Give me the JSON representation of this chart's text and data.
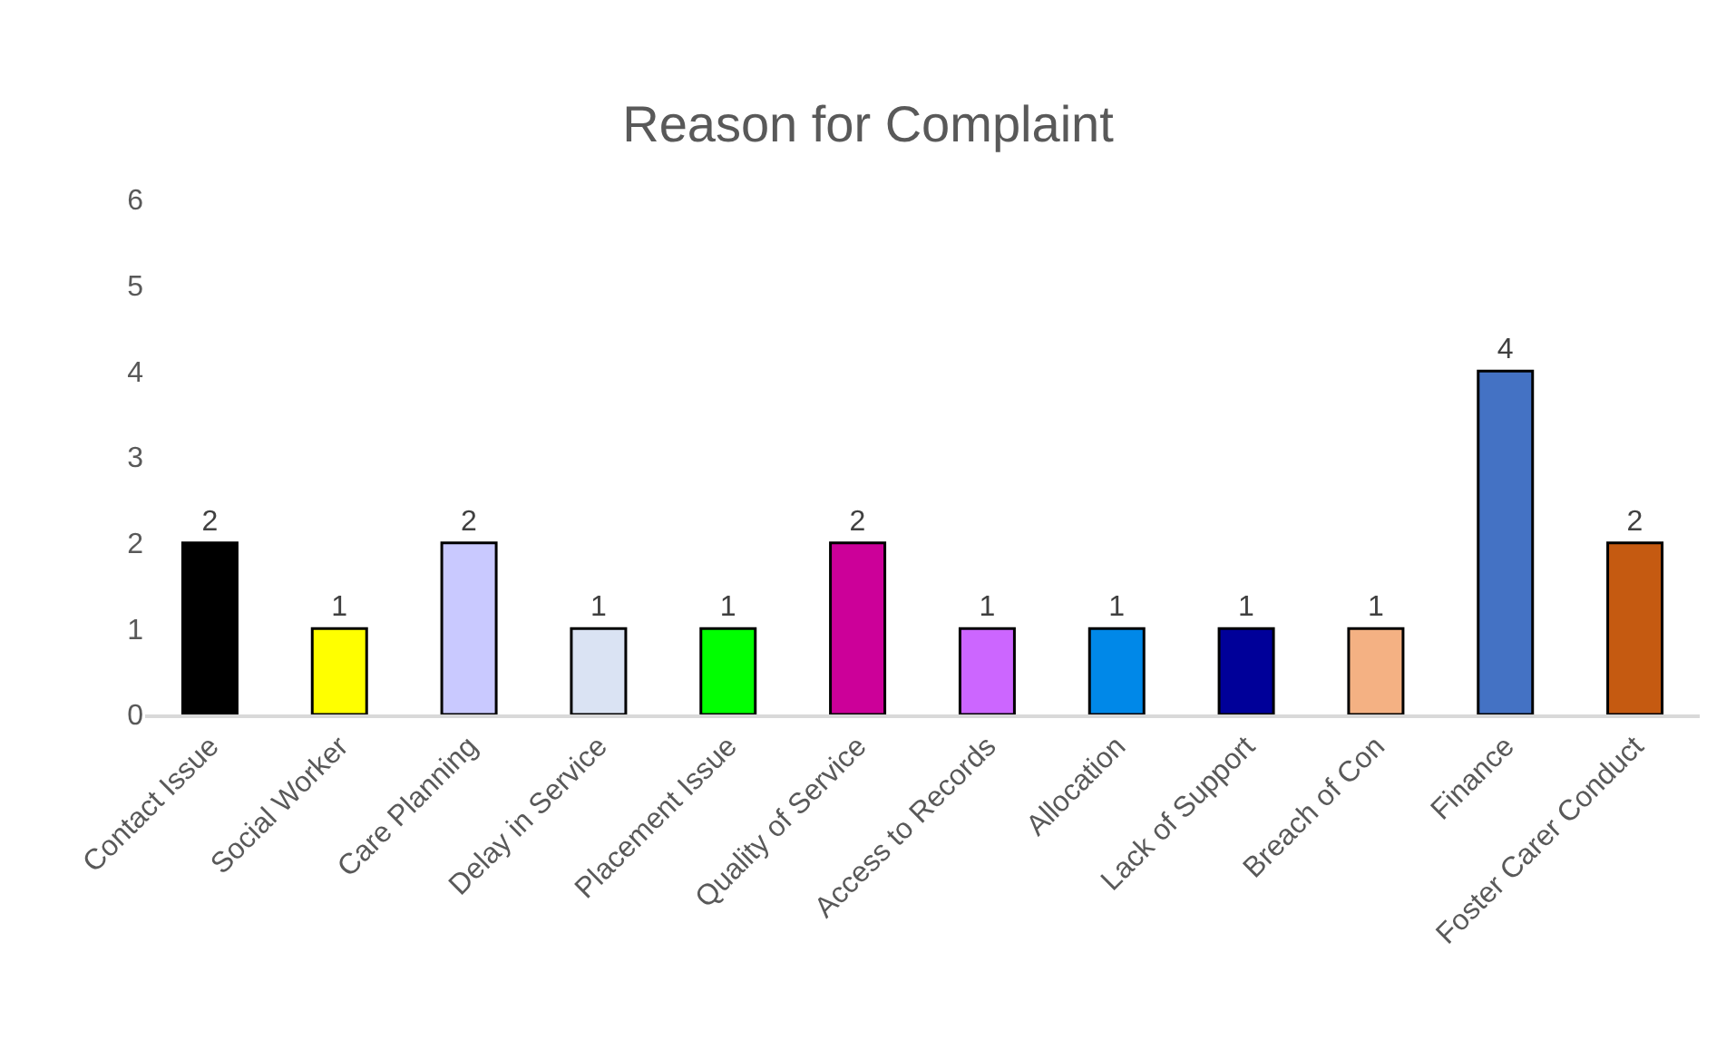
{
  "chart_data": {
    "type": "bar",
    "title": "Reason for Complaint",
    "categories": [
      "Contact Issue",
      "Social Worker",
      "Care Planning",
      "Delay in Service",
      "Placement Issue",
      "Quality of Service",
      "Access to Records",
      "Allocation",
      "Lack of Support",
      "Breach of Con",
      "Finance",
      "Foster Carer Conduct"
    ],
    "values": [
      2,
      1,
      2,
      1,
      1,
      2,
      1,
      1,
      1,
      1,
      4,
      2
    ],
    "colors": [
      "#000000",
      "#ffff00",
      "#c9c9ff",
      "#dae3f3",
      "#00ff00",
      "#cc0099",
      "#cc66ff",
      "#0088e8",
      "#000099",
      "#f4b183",
      "#4472c4",
      "#c55a11"
    ],
    "ylim": [
      0,
      6
    ],
    "yticks": [
      0,
      1,
      2,
      3,
      4,
      5,
      6
    ],
    "grid": false,
    "data_labels": true
  }
}
